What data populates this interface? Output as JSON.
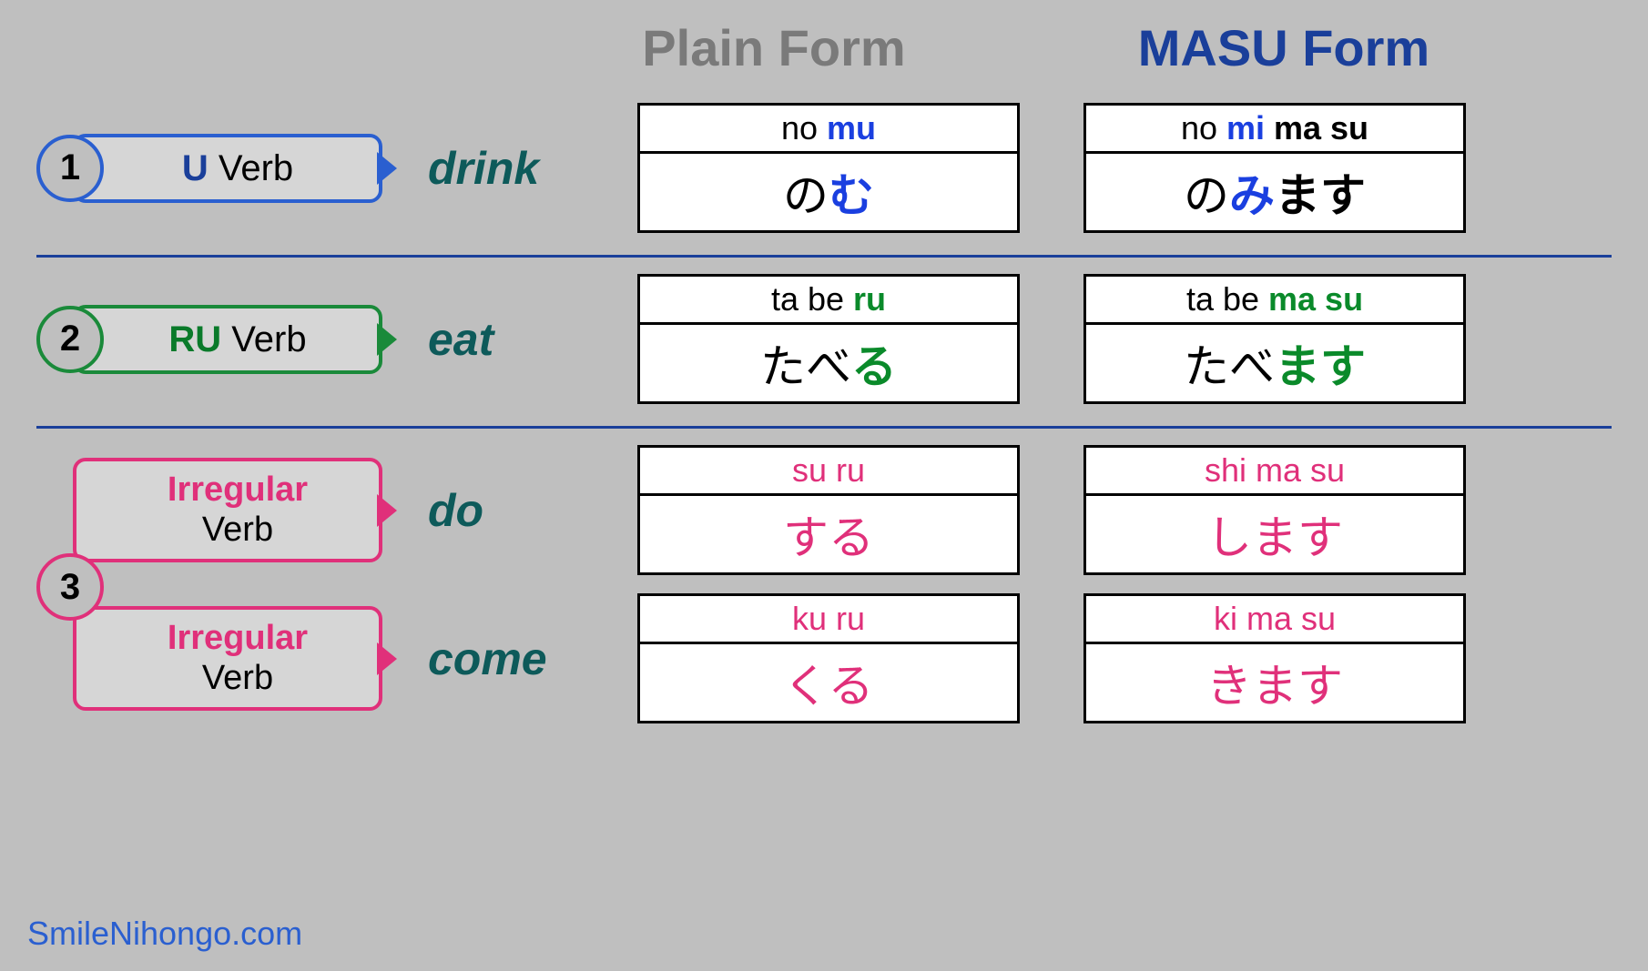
{
  "headers": {
    "plain": "Plain Form",
    "masu": "MASU Form"
  },
  "colors": {
    "blue": "#1a3f9a",
    "green": "#0a8a2a",
    "pink": "#e0307a",
    "teal": "#0d5a5a",
    "grayHeader": "#7a7a7a",
    "bg": "#bfbfbf",
    "tagBg": "#d6d6d6"
  },
  "rows": [
    {
      "num": "1",
      "color": "blue",
      "tag_accent": "U",
      "tag_rest": " Verb",
      "meaning": "drink",
      "plain": {
        "romaji_pre": "no ",
        "romaji_hl": "mu",
        "romaji_post": "",
        "kana_pre": "の",
        "kana_hl": "む",
        "kana_post": ""
      },
      "masu": {
        "romaji_pre": "no ",
        "romaji_hl": "mi",
        "romaji_post": " ma su",
        "kana_pre": "の",
        "kana_hl": "み",
        "kana_post": "ます"
      }
    },
    {
      "num": "2",
      "color": "green",
      "tag_accent": "RU",
      "tag_rest": " Verb",
      "meaning": "eat",
      "plain": {
        "romaji_pre": "ta be ",
        "romaji_hl": "ru",
        "romaji_post": "",
        "kana_pre": "たべ",
        "kana_hl": "る",
        "kana_post": ""
      },
      "masu": {
        "romaji_pre": "ta be ",
        "romaji_hl": "ma su",
        "romaji_post": "",
        "kana_pre": "たべ",
        "kana_hl": "ます",
        "kana_post": ""
      }
    }
  ],
  "irregular": {
    "num": "3",
    "tag_accent": "Irregular",
    "tag_line2": "Verb",
    "items": [
      {
        "meaning": "do",
        "plain": {
          "romaji": "su ru",
          "kana": "する"
        },
        "masu": {
          "romaji": "shi ma su",
          "kana": "します"
        }
      },
      {
        "meaning": "come",
        "plain": {
          "romaji": "ku ru",
          "kana": "くる"
        },
        "masu": {
          "romaji": "ki ma su",
          "kana": "きます"
        }
      }
    ]
  },
  "footer": "SmileNihongo.com"
}
